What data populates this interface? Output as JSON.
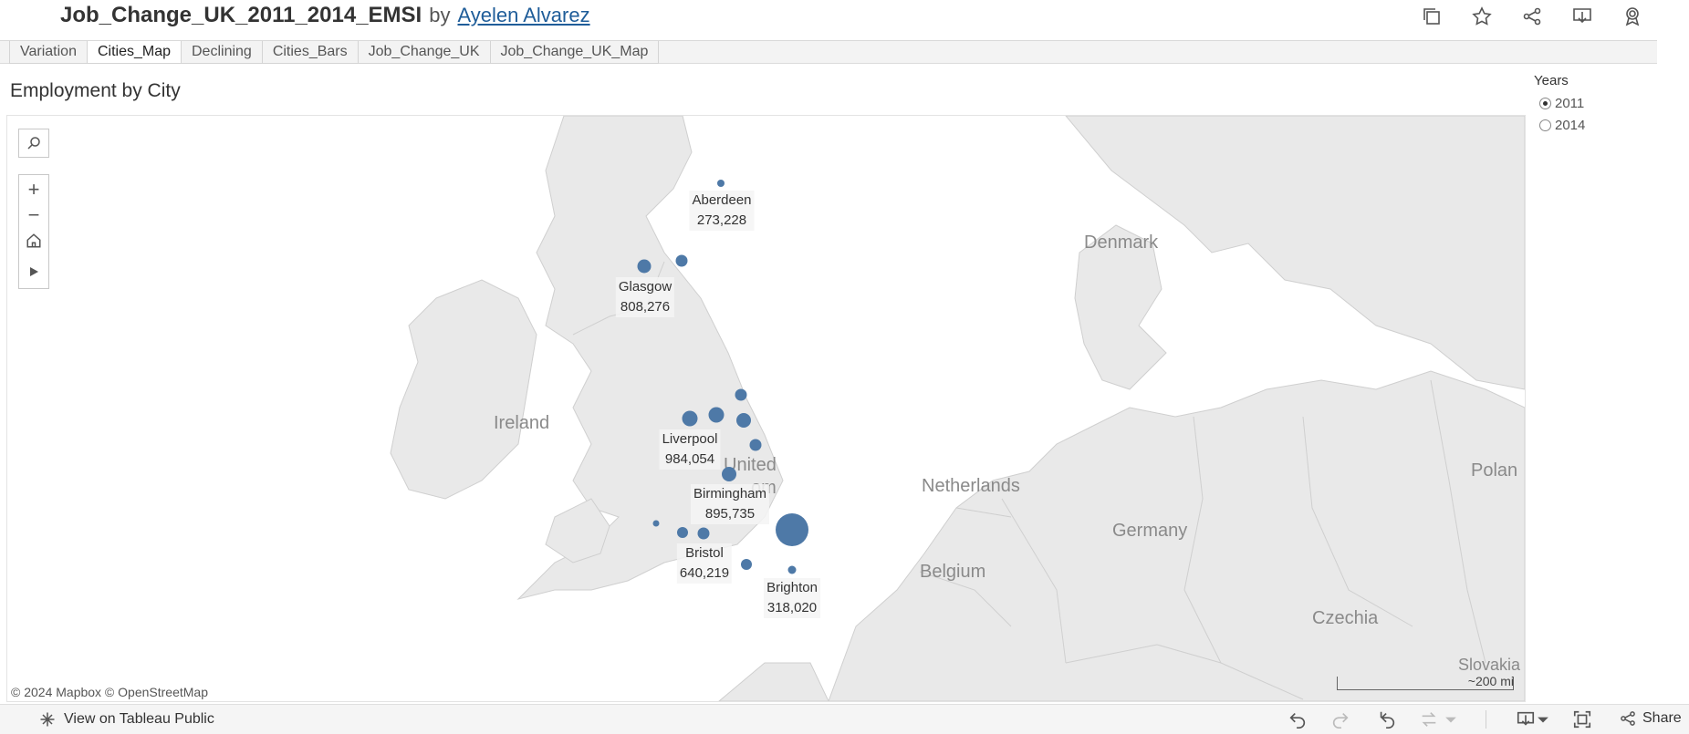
{
  "header": {
    "title": "Job_Change_UK_2011_2014_EMSI",
    "by": "by",
    "author": "Ayelen Alvarez"
  },
  "tabs": [
    {
      "label": "Variation",
      "active": false
    },
    {
      "label": "Cities_Map",
      "active": true
    },
    {
      "label": "Declining",
      "active": false
    },
    {
      "label": "Cities_Bars",
      "active": false
    },
    {
      "label": "Job_Change_UK",
      "active": false
    },
    {
      "label": "Job_Change_UK_Map",
      "active": false
    }
  ],
  "sheet_title": "Employment by City",
  "map": {
    "country_labels": {
      "denmark": "Denmark",
      "ireland": "Ireland",
      "united": "United",
      "kingdom_partial": "om",
      "netherlands": "Netherlands",
      "germany": "Germany",
      "belgium": "Belgium",
      "poland": "Polan",
      "czechia": "Czechia",
      "slovakia": "Slovakia"
    },
    "city_labels": {
      "aberdeen": {
        "name": "Aberdeen",
        "value": "273,228"
      },
      "glasgow": {
        "name": "Glasgow",
        "value": "808,276"
      },
      "liverpool": {
        "name": "Liverpool",
        "value": "984,054"
      },
      "birmingham": {
        "name": "Birmingham",
        "value": "895,735"
      },
      "bristol": {
        "name": "Bristol",
        "value": "640,219"
      },
      "brighton": {
        "name": "Brighton",
        "value": "318,020"
      }
    },
    "mark_color": "#4e79a7",
    "attribution": "© 2024 Mapbox  © OpenStreetMap",
    "scale_label": "~200 mi"
  },
  "filter": {
    "title": "Years",
    "options": [
      {
        "label": "2011",
        "checked": true
      },
      {
        "label": "2014",
        "checked": false
      }
    ]
  },
  "toolbar": {
    "view_on_public": "View on Tableau Public",
    "share": "Share",
    "icons": [
      "undo-icon",
      "redo-icon",
      "revert-icon",
      "refresh-icon",
      "pause-icon",
      "download-icon",
      "fullscreen-icon",
      "share-icon"
    ]
  }
}
